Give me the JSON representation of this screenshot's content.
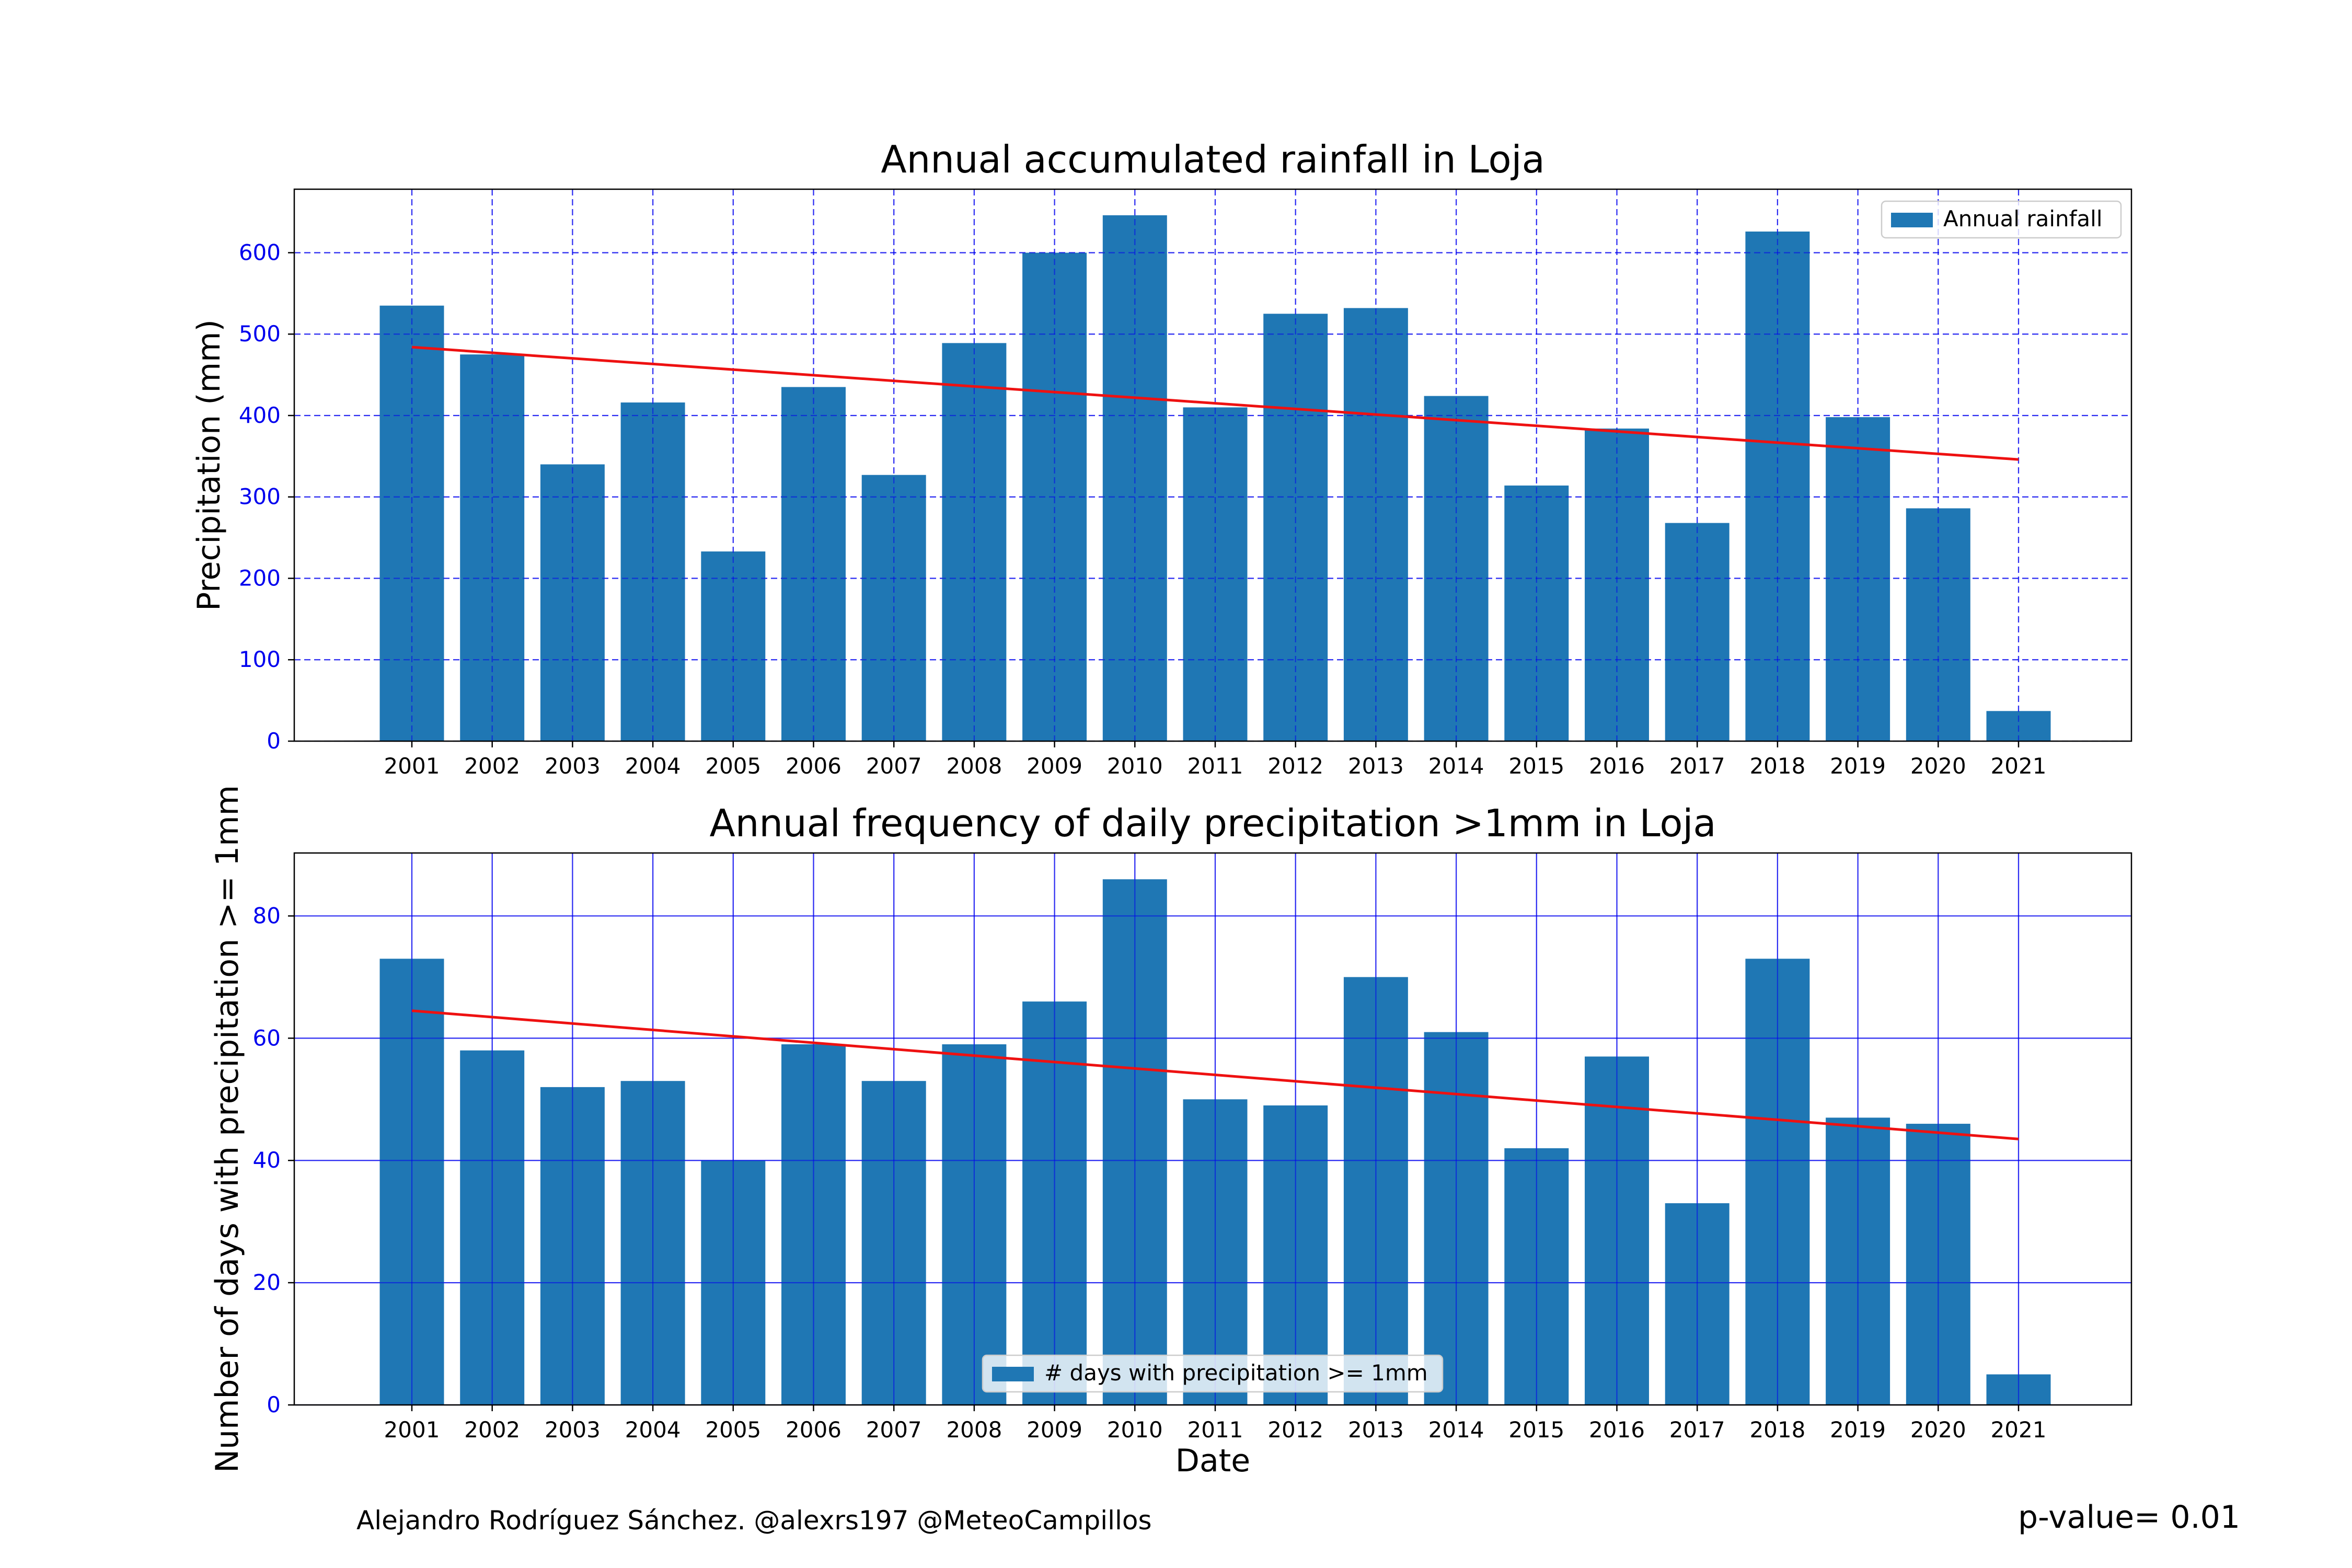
{
  "footer": {
    "credit": "Alejandro Rodríguez Sánchez. @alexrs197 @MeteoCampillos",
    "pvalue": "p-value= 0.01"
  },
  "colors": {
    "bar": "#1f77b4",
    "trend": "#ee1111",
    "grid": "#0000ee",
    "ytick": "#0000ee"
  },
  "chart_data": [
    {
      "type": "bar",
      "title": "Annual accumulated rainfall in Loja",
      "xlabel": "",
      "ylabel": "Precipitation (mm)",
      "categories": [
        "2001",
        "2002",
        "2003",
        "2004",
        "2005",
        "2006",
        "2007",
        "2008",
        "2009",
        "2010",
        "2011",
        "2012",
        "2013",
        "2014",
        "2015",
        "2016",
        "2017",
        "2018",
        "2019",
        "2020",
        "2021"
      ],
      "series": [
        {
          "name": "Annual rainfall",
          "values": [
            535,
            475,
            340,
            416,
            233,
            435,
            327,
            489,
            600,
            646,
            410,
            525,
            532,
            424,
            314,
            384,
            268,
            626,
            398,
            286,
            37
          ]
        }
      ],
      "trend": {
        "start": 484,
        "end": 346
      },
      "yticks": [
        0,
        100,
        200,
        300,
        400,
        500,
        600
      ],
      "ylim": [
        0,
        678
      ],
      "grid": "dashed",
      "legend_position": "top-right"
    },
    {
      "type": "bar",
      "title": "Annual frequency of daily precipitation >1mm in Loja",
      "xlabel": "Date",
      "ylabel": "Number of days with precipitation >= 1mm",
      "categories": [
        "2001",
        "2002",
        "2003",
        "2004",
        "2005",
        "2006",
        "2007",
        "2008",
        "2009",
        "2010",
        "2011",
        "2012",
        "2013",
        "2014",
        "2015",
        "2016",
        "2017",
        "2018",
        "2019",
        "2020",
        "2021"
      ],
      "series": [
        {
          "name": "# days with precipitation >= 1mm",
          "values": [
            73,
            58,
            52,
            53,
            40,
            59,
            53,
            59,
            66,
            86,
            50,
            49,
            70,
            61,
            42,
            57,
            33,
            73,
            47,
            46,
            5
          ]
        }
      ],
      "trend": {
        "start": 64.5,
        "end": 43.5
      },
      "yticks": [
        0,
        20,
        40,
        60,
        80
      ],
      "ylim": [
        0,
        90.3
      ],
      "grid": "solid",
      "legend_position": "bottom-center"
    }
  ]
}
